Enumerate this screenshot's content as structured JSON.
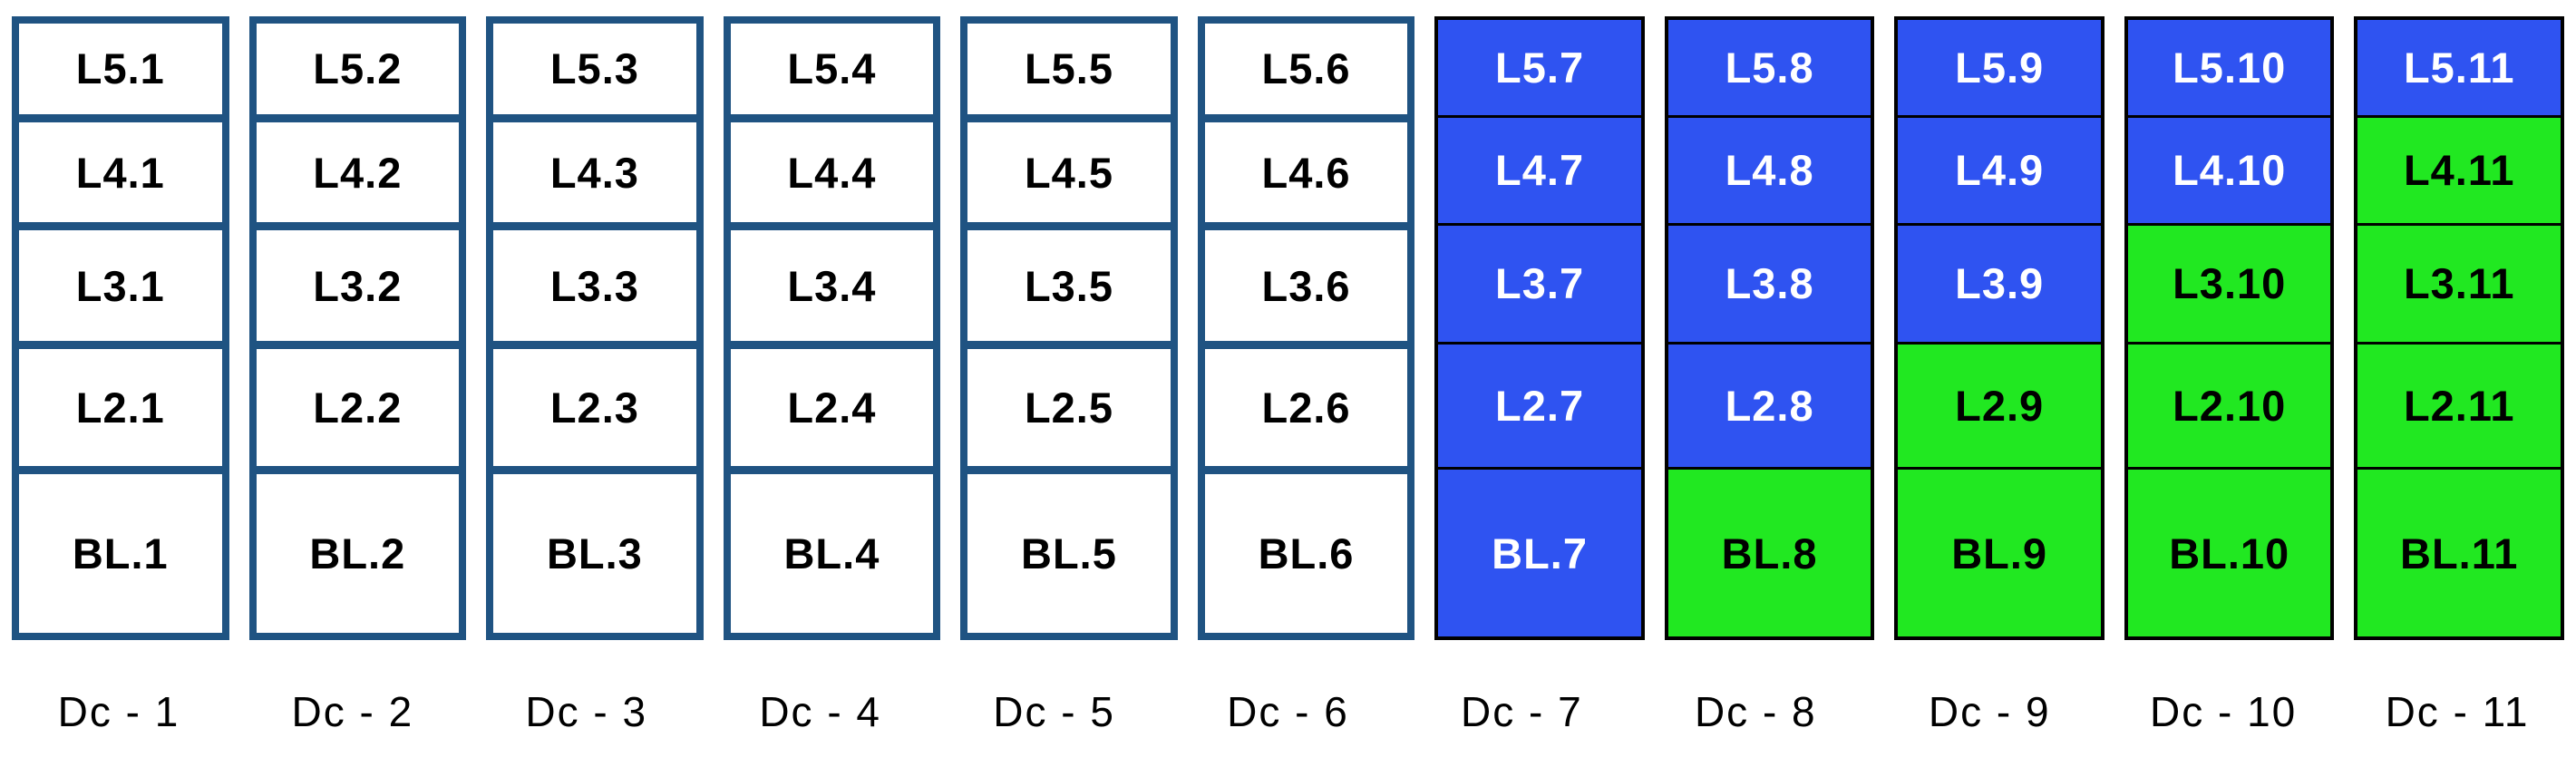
{
  "colors": {
    "navy_border": "#1F5382",
    "black_border": "#000000",
    "blue_fill": "#2F53F1",
    "green_fill": "#21E821",
    "white_fill": "#FFFFFF",
    "text_dark": "#000000",
    "text_light": "#FFFFFF"
  },
  "diagram": {
    "row_order_top_to_bottom": [
      "L5",
      "L4",
      "L3",
      "L2",
      "BL"
    ],
    "columns": [
      {
        "label": "Dc - 1",
        "style": "navy",
        "cells": [
          {
            "label": "L5.1",
            "fill": "white"
          },
          {
            "label": "L4.1",
            "fill": "white"
          },
          {
            "label": "L3.1",
            "fill": "white"
          },
          {
            "label": "L2.1",
            "fill": "white"
          },
          {
            "label": "BL.1",
            "fill": "white"
          }
        ]
      },
      {
        "label": "Dc - 2",
        "style": "navy",
        "cells": [
          {
            "label": "L5.2",
            "fill": "white"
          },
          {
            "label": "L4.2",
            "fill": "white"
          },
          {
            "label": "L3.2",
            "fill": "white"
          },
          {
            "label": "L2.2",
            "fill": "white"
          },
          {
            "label": "BL.2",
            "fill": "white"
          }
        ]
      },
      {
        "label": "Dc - 3",
        "style": "navy",
        "cells": [
          {
            "label": "L5.3",
            "fill": "white"
          },
          {
            "label": "L4.3",
            "fill": "white"
          },
          {
            "label": "L3.3",
            "fill": "white"
          },
          {
            "label": "L2.3",
            "fill": "white"
          },
          {
            "label": "BL.3",
            "fill": "white"
          }
        ]
      },
      {
        "label": "Dc - 4",
        "style": "navy",
        "cells": [
          {
            "label": "L5.4",
            "fill": "white"
          },
          {
            "label": "L4.4",
            "fill": "white"
          },
          {
            "label": "L3.4",
            "fill": "white"
          },
          {
            "label": "L2.4",
            "fill": "white"
          },
          {
            "label": "BL.4",
            "fill": "white"
          }
        ]
      },
      {
        "label": "Dc - 5",
        "style": "navy",
        "cells": [
          {
            "label": "L5.5",
            "fill": "white"
          },
          {
            "label": "L4.5",
            "fill": "white"
          },
          {
            "label": "L3.5",
            "fill": "white"
          },
          {
            "label": "L2.5",
            "fill": "white"
          },
          {
            "label": "BL.5",
            "fill": "white"
          }
        ]
      },
      {
        "label": "Dc - 6",
        "style": "navy",
        "cells": [
          {
            "label": "L5.6",
            "fill": "white"
          },
          {
            "label": "L4.6",
            "fill": "white"
          },
          {
            "label": "L3.6",
            "fill": "white"
          },
          {
            "label": "L2.6",
            "fill": "white"
          },
          {
            "label": "BL.6",
            "fill": "white"
          }
        ]
      },
      {
        "label": "Dc - 7",
        "style": "black",
        "cells": [
          {
            "label": "L5.7",
            "fill": "blue"
          },
          {
            "label": "L4.7",
            "fill": "blue"
          },
          {
            "label": "L3.7",
            "fill": "blue"
          },
          {
            "label": "L2.7",
            "fill": "blue"
          },
          {
            "label": "BL.7",
            "fill": "blue"
          }
        ]
      },
      {
        "label": "Dc - 8",
        "style": "black",
        "cells": [
          {
            "label": "L5.8",
            "fill": "blue"
          },
          {
            "label": "L4.8",
            "fill": "blue"
          },
          {
            "label": "L3.8",
            "fill": "blue"
          },
          {
            "label": "L2.8",
            "fill": "blue"
          },
          {
            "label": "BL.8",
            "fill": "green"
          }
        ]
      },
      {
        "label": "Dc - 9",
        "style": "black",
        "cells": [
          {
            "label": "L5.9",
            "fill": "blue"
          },
          {
            "label": "L4.9",
            "fill": "blue"
          },
          {
            "label": "L3.9",
            "fill": "blue"
          },
          {
            "label": "L2.9",
            "fill": "green"
          },
          {
            "label": "BL.9",
            "fill": "green"
          }
        ]
      },
      {
        "label": "Dc - 10",
        "style": "black",
        "cells": [
          {
            "label": "L5.10",
            "fill": "blue"
          },
          {
            "label": "L4.10",
            "fill": "blue"
          },
          {
            "label": "L3.10",
            "fill": "green"
          },
          {
            "label": "L2.10",
            "fill": "green"
          },
          {
            "label": "BL.10",
            "fill": "green"
          }
        ]
      },
      {
        "label": "Dc - 11",
        "style": "black",
        "cells": [
          {
            "label": "L5.11",
            "fill": "blue"
          },
          {
            "label": "L4.11",
            "fill": "green"
          },
          {
            "label": "L3.11",
            "fill": "green"
          },
          {
            "label": "L2.11",
            "fill": "green"
          },
          {
            "label": "BL.11",
            "fill": "green"
          }
        ]
      }
    ]
  }
}
